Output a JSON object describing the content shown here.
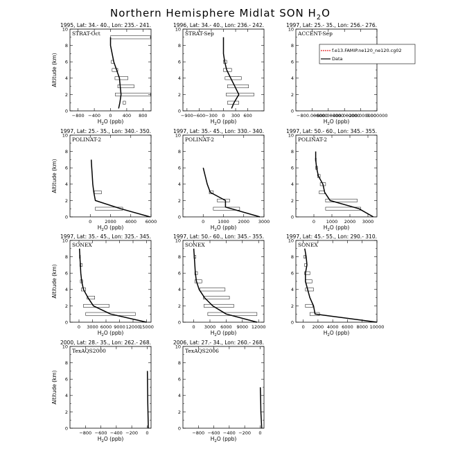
{
  "figure": {
    "title": "Northern Hemisphere Midlat SON H",
    "title_sub": "2",
    "title_end": "O"
  },
  "chart_data": [
    {
      "type": "line",
      "header": "1995, Lat: 34.- 40., Lon: 235.- 241.",
      "tag": "STRAT-Oct",
      "xlabel": "H2O (ppb)",
      "ylabel": "Altitude (km)",
      "xlim": [
        -1000,
        1000
      ],
      "ylim": [
        0,
        10
      ],
      "xticks": [
        -800,
        -400,
        0,
        400,
        800
      ],
      "xtick_labels": [
        "−800",
        "−400",
        "0",
        "400",
        "800"
      ],
      "yticks": [
        0,
        2,
        4,
        6,
        8,
        10
      ],
      "profile": [
        [
          200,
          0.3
        ],
        [
          230,
          1
        ],
        [
          260,
          2
        ],
        [
          240,
          3
        ],
        [
          220,
          4
        ],
        [
          150,
          5
        ],
        [
          80,
          6
        ],
        [
          0,
          8
        ],
        [
          0,
          9
        ]
      ],
      "bars": [
        [
          310,
          370,
          1
        ],
        [
          120,
          990,
          2
        ],
        [
          180,
          580,
          3
        ],
        [
          110,
          430,
          4
        ],
        [
          40,
          180,
          5
        ],
        [
          20,
          80,
          6
        ],
        [
          0,
          990,
          9
        ]
      ]
    },
    {
      "type": "line",
      "header": "1996, Lat: 34.- 40., Lon: 236.- 242.",
      "tag": "STRAT-Sep",
      "xlabel": "H2O (ppb)",
      "ylabel": "",
      "xlim": [
        -1000,
        1000
      ],
      "ylim": [
        0,
        10
      ],
      "xticks": [
        -900,
        -600,
        -300,
        0,
        300,
        600
      ],
      "xtick_labels": [
        "−900",
        "−600",
        "−300",
        "0",
        "300",
        "600"
      ],
      "yticks": [
        0,
        2,
        4,
        6,
        8,
        10
      ],
      "profile": [
        [
          200,
          0.3
        ],
        [
          260,
          1
        ],
        [
          380,
          2
        ],
        [
          280,
          3
        ],
        [
          180,
          4
        ],
        [
          80,
          5
        ],
        [
          30,
          6
        ],
        [
          0,
          7
        ],
        [
          0,
          9
        ]
      ],
      "bars": [
        [
          100,
          380,
          1
        ],
        [
          70,
          750,
          2
        ],
        [
          100,
          620,
          3
        ],
        [
          40,
          440,
          4
        ],
        [
          0,
          200,
          5
        ],
        [
          0,
          80,
          6
        ]
      ]
    },
    {
      "type": "line",
      "header": "1997, Lat: 25.- 35., Lon: 256.- 276.",
      "tag": "ACCENT-Sep",
      "xlabel": "H2O (ppb)",
      "ylabel": "",
      "xlim": [
        -1000,
        0
      ],
      "ylim": [
        0,
        10
      ],
      "xticks": [
        -800,
        -600,
        -400,
        -200,
        0
      ],
      "xtick_labels": [
        "−800.000000",
        "−600.000000",
        "−400.000000",
        "−200.000000",
        "0.000000"
      ],
      "yticks": [
        0,
        2,
        4,
        6,
        8,
        10
      ],
      "profile": [],
      "bars": [],
      "legend": [
        "f.e13.FAMIP.ne120_ne120.cg02",
        "Data"
      ]
    },
    {
      "type": "line",
      "header": "1997, Lat: 25.- 35., Lon: 340.- 350.",
      "tag": "POLINAT-2",
      "xlabel": "H2O (ppb)",
      "ylabel": "Altitude (km)",
      "xlim": [
        -2000,
        6000
      ],
      "ylim": [
        0,
        10
      ],
      "xticks": [
        0,
        2000,
        4000,
        6000
      ],
      "xtick_labels": [
        "0",
        "2000",
        "4000",
        "6000"
      ],
      "yticks": [
        0,
        2,
        4,
        6,
        8,
        10
      ],
      "profile": [
        [
          5900,
          0
        ],
        [
          3000,
          1
        ],
        [
          500,
          2
        ],
        [
          350,
          3
        ],
        [
          250,
          4
        ],
        [
          200,
          5
        ],
        [
          150,
          6
        ],
        [
          100,
          7
        ]
      ],
      "bars": [
        [
          500,
          3200,
          1
        ],
        [
          400,
          1100,
          3
        ]
      ]
    },
    {
      "type": "line",
      "header": "1997, Lat: 35.- 45., Lon: 330.- 340.",
      "tag": "POLINAT-2",
      "xlabel": "H2O (ppb)",
      "ylabel": "",
      "xlim": [
        -1000,
        3000
      ],
      "ylim": [
        0,
        10
      ],
      "xticks": [
        0,
        1000,
        2000,
        3000
      ],
      "xtick_labels": [
        "0",
        "1000",
        "2000",
        "3000"
      ],
      "yticks": [
        0,
        2,
        4,
        6,
        8,
        10
      ],
      "profile": [
        [
          2800,
          0
        ],
        [
          1100,
          1.2
        ],
        [
          1100,
          2
        ],
        [
          350,
          3
        ],
        [
          200,
          4
        ],
        [
          100,
          5
        ],
        [
          0,
          6
        ]
      ],
      "bars": [
        [
          500,
          1800,
          1
        ],
        [
          700,
          1300,
          2
        ],
        [
          300,
          500,
          3
        ]
      ]
    },
    {
      "type": "line",
      "header": "1997, Lat: 50.- 60., Lon: 345.- 355.",
      "tag": "POLINAT-2",
      "xlabel": "H2O (ppb)",
      "ylabel": "",
      "xlim": [
        -1000,
        3500
      ],
      "ylim": [
        0,
        10
      ],
      "xticks": [
        0,
        1000,
        2000,
        3000
      ],
      "xtick_labels": [
        "0",
        "1000",
        "2000",
        "3000"
      ],
      "yticks": [
        0,
        2,
        4,
        6,
        8,
        10
      ],
      "profile": [
        [
          3300,
          0
        ],
        [
          2500,
          1
        ],
        [
          900,
          2
        ],
        [
          600,
          3
        ],
        [
          500,
          4
        ],
        [
          250,
          5
        ],
        [
          150,
          6
        ],
        [
          100,
          7
        ],
        [
          100,
          8
        ]
      ],
      "bars": [
        [
          650,
          2600,
          1
        ],
        [
          650,
          2400,
          2
        ],
        [
          300,
          600,
          3
        ],
        [
          350,
          650,
          4
        ],
        [
          200,
          350,
          5
        ],
        [
          100,
          200,
          6
        ],
        [
          80,
          130,
          7
        ]
      ]
    },
    {
      "type": "line",
      "header": "1997, Lat: 35.- 45., Lon: 325.- 345.",
      "tag": "SONEX",
      "xlabel": "H2O (ppb)",
      "ylabel": "Altitude (km)",
      "xlim": [
        -2000,
        16000
      ],
      "ylim": [
        0,
        10
      ],
      "xticks": [
        0,
        3000,
        6000,
        9000,
        12000,
        15000
      ],
      "xtick_labels": [
        "0",
        "3000",
        "6000",
        "9000",
        "12000",
        "15000"
      ],
      "yticks": [
        0,
        2,
        4,
        6,
        8,
        10
      ],
      "profile": [
        [
          15000,
          0
        ],
        [
          7000,
          1
        ],
        [
          3200,
          2
        ],
        [
          2000,
          3
        ],
        [
          1000,
          4
        ],
        [
          600,
          5
        ],
        [
          400,
          6
        ],
        [
          300,
          7
        ],
        [
          200,
          8
        ],
        [
          100,
          9
        ]
      ],
      "bars": [
        [
          1500,
          12500,
          1
        ],
        [
          1000,
          6700,
          2
        ],
        [
          1800,
          3500,
          3
        ],
        [
          500,
          1500,
          4
        ],
        [
          300,
          800,
          5
        ],
        [
          200,
          700,
          7
        ],
        [
          100,
          300,
          8
        ]
      ]
    },
    {
      "type": "line",
      "header": "1997, Lat: 50.- 60., Lon: 345.- 355.",
      "tag": "SONEX",
      "xlabel": "H2O (ppb)",
      "ylabel": "",
      "xlim": [
        -2000,
        13000
      ],
      "ylim": [
        0,
        10
      ],
      "xticks": [
        0,
        3000,
        6000,
        9000,
        12000
      ],
      "xtick_labels": [
        "0",
        "3000",
        "6000",
        "9000",
        "12000"
      ],
      "yticks": [
        0,
        2,
        4,
        6,
        8,
        10
      ],
      "profile": [
        [
          11700,
          0
        ],
        [
          6000,
          1
        ],
        [
          3500,
          2
        ],
        [
          2000,
          3
        ],
        [
          1000,
          4
        ],
        [
          500,
          5
        ],
        [
          300,
          6
        ],
        [
          200,
          7
        ],
        [
          100,
          8
        ],
        [
          0,
          9
        ]
      ],
      "bars": [
        [
          2600,
          11700,
          1
        ],
        [
          1900,
          7400,
          2
        ],
        [
          1800,
          6600,
          3
        ],
        [
          1100,
          5800,
          4
        ],
        [
          200,
          1500,
          5
        ],
        [
          200,
          700,
          6
        ],
        [
          50,
          400,
          8
        ]
      ]
    },
    {
      "type": "line",
      "header": "1997, Lat: 45.- 55., Lon: 290.- 310.",
      "tag": "SONEX",
      "xlabel": "H2O (ppb)",
      "ylabel": "",
      "xlim": [
        -1000,
        10000
      ],
      "ylim": [
        0,
        10
      ],
      "xticks": [
        0,
        2000,
        4000,
        6000,
        8000,
        10000
      ],
      "xtick_labels": [
        "0",
        "2000",
        "4000",
        "6000",
        "8000",
        "10000"
      ],
      "yticks": [
        0,
        2,
        4,
        6,
        8,
        10
      ],
      "profile": [
        [
          10000,
          0
        ],
        [
          1600,
          1
        ],
        [
          1400,
          2
        ],
        [
          900,
          3
        ],
        [
          600,
          4
        ],
        [
          300,
          5
        ],
        [
          300,
          6
        ],
        [
          500,
          7
        ],
        [
          400,
          8
        ],
        [
          200,
          9
        ]
      ],
      "bars": [
        [
          900,
          2200,
          1
        ],
        [
          300,
          1300,
          2
        ],
        [
          300,
          1400,
          4
        ],
        [
          300,
          1200,
          5
        ],
        [
          200,
          900,
          6
        ],
        [
          200,
          500,
          7
        ],
        [
          100,
          300,
          8
        ]
      ]
    },
    {
      "type": "line",
      "header": "2000, Lat: 28.- 35., Lon: 262.- 268.",
      "tag": "TexAQS2000",
      "xlabel": "H2O (ppb)",
      "ylabel": "Altitude (km)",
      "xlim": [
        -1000,
        50
      ],
      "ylim": [
        0,
        10
      ],
      "xticks": [
        -800,
        -600,
        -400,
        -200,
        0
      ],
      "xtick_labels": [
        "−800",
        "−600",
        "−400",
        "−200",
        "0"
      ],
      "yticks": [
        0,
        2,
        4,
        6,
        8,
        10
      ],
      "profile": [
        [
          15,
          0
        ],
        [
          12,
          1
        ],
        [
          8,
          3
        ],
        [
          5,
          5
        ],
        [
          2,
          7
        ]
      ],
      "bars": []
    },
    {
      "type": "line",
      "header": "2006, Lat: 27.- 34., Lon: 260.- 268.",
      "tag": "TexAQS2006",
      "xlabel": "H2O (ppb)",
      "ylabel": "",
      "xlim": [
        -1000,
        50
      ],
      "ylim": [
        0,
        10
      ],
      "xticks": [
        -800,
        -600,
        -400,
        -200,
        0
      ],
      "xtick_labels": [
        "−800",
        "−600",
        "−400",
        "−200",
        "0"
      ],
      "yticks": [
        0,
        2,
        4,
        6,
        8,
        10
      ],
      "profile": [
        [
          20,
          0
        ],
        [
          15,
          1
        ],
        [
          10,
          2
        ],
        [
          8,
          3
        ],
        [
          5,
          4
        ],
        [
          2,
          5
        ]
      ],
      "bars": []
    }
  ]
}
